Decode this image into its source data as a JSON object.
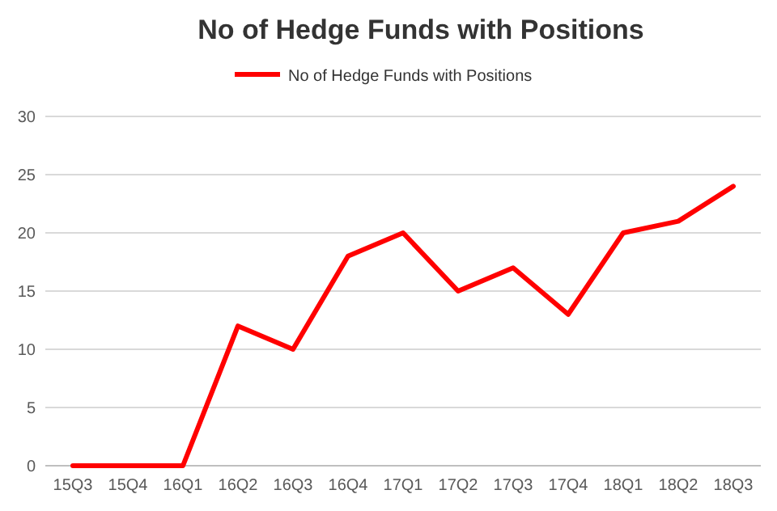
{
  "chart_data": {
    "type": "line",
    "title": "No of Hedge Funds with Positions",
    "categories": [
      "15Q3",
      "15Q4",
      "16Q1",
      "16Q2",
      "16Q3",
      "16Q4",
      "17Q1",
      "17Q2",
      "17Q3",
      "17Q4",
      "18Q1",
      "18Q2",
      "18Q3"
    ],
    "series": [
      {
        "name": "No of Hedge Funds with Positions",
        "color": "#ff0000",
        "values": [
          0,
          0,
          0,
          12,
          10,
          18,
          20,
          15,
          17,
          13,
          20,
          21,
          24
        ]
      }
    ],
    "ylim": [
      0,
      30
    ],
    "yticks": [
      0,
      5,
      10,
      15,
      20,
      25,
      30
    ],
    "grid": "y",
    "legend": "top",
    "marker": "none",
    "line_style": "solid"
  }
}
